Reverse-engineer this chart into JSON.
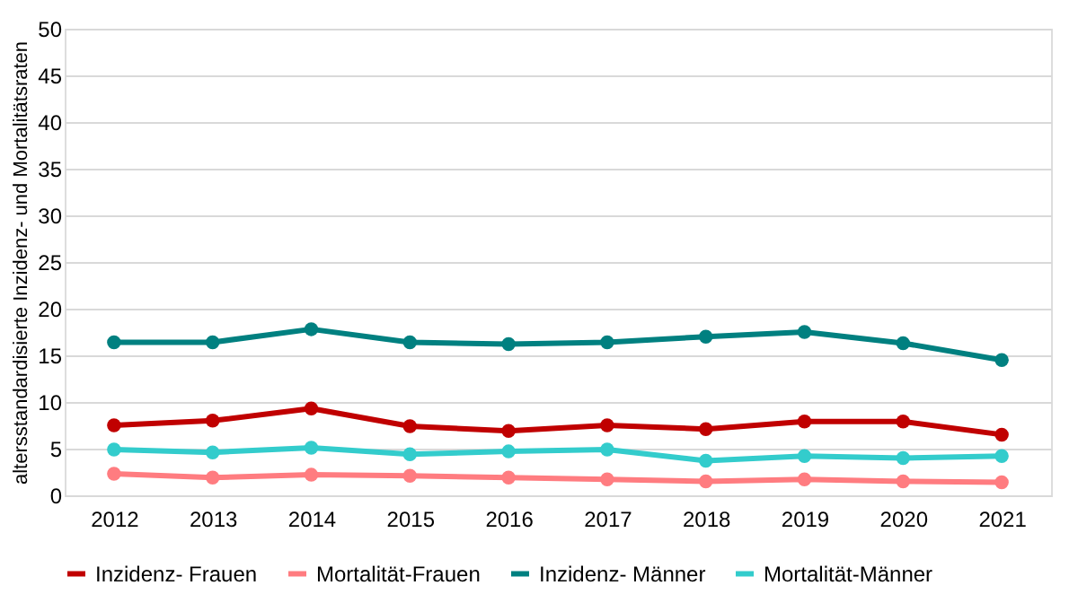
{
  "chart_data": {
    "type": "line",
    "ylabel": "altersstandardisierte Inzidenz- und Mortalitätsraten",
    "categories": [
      "2012",
      "2013",
      "2014",
      "2015",
      "2016",
      "2017",
      "2018",
      "2019",
      "2020",
      "2021"
    ],
    "series": [
      {
        "name": "Inzidenz- Frauen",
        "color": "#c00000",
        "values": [
          7.5,
          8.0,
          9.3,
          7.4,
          6.9,
          7.5,
          7.1,
          7.9,
          7.9,
          6.5
        ]
      },
      {
        "name": "Mortalität-Frauen",
        "color": "#ff7c80",
        "values": [
          2.3,
          1.9,
          2.2,
          2.1,
          1.9,
          1.7,
          1.5,
          1.7,
          1.5,
          1.4
        ]
      },
      {
        "name": "Inzidenz- Männer",
        "color": "#008080",
        "values": [
          16.4,
          16.4,
          17.8,
          16.4,
          16.2,
          16.4,
          17.0,
          17.5,
          16.3,
          14.5
        ]
      },
      {
        "name": "Mortalität-Männer",
        "color": "#33cccc",
        "values": [
          4.9,
          4.6,
          5.1,
          4.4,
          4.7,
          4.9,
          3.7,
          4.2,
          4.0,
          4.2
        ]
      }
    ],
    "ylim": [
      0,
      50
    ],
    "yticks": [
      0,
      5,
      10,
      15,
      20,
      25,
      30,
      35,
      40,
      45,
      50
    ],
    "grid": "y",
    "legend": "bottom",
    "marker": "circle",
    "line_style": "solid"
  }
}
